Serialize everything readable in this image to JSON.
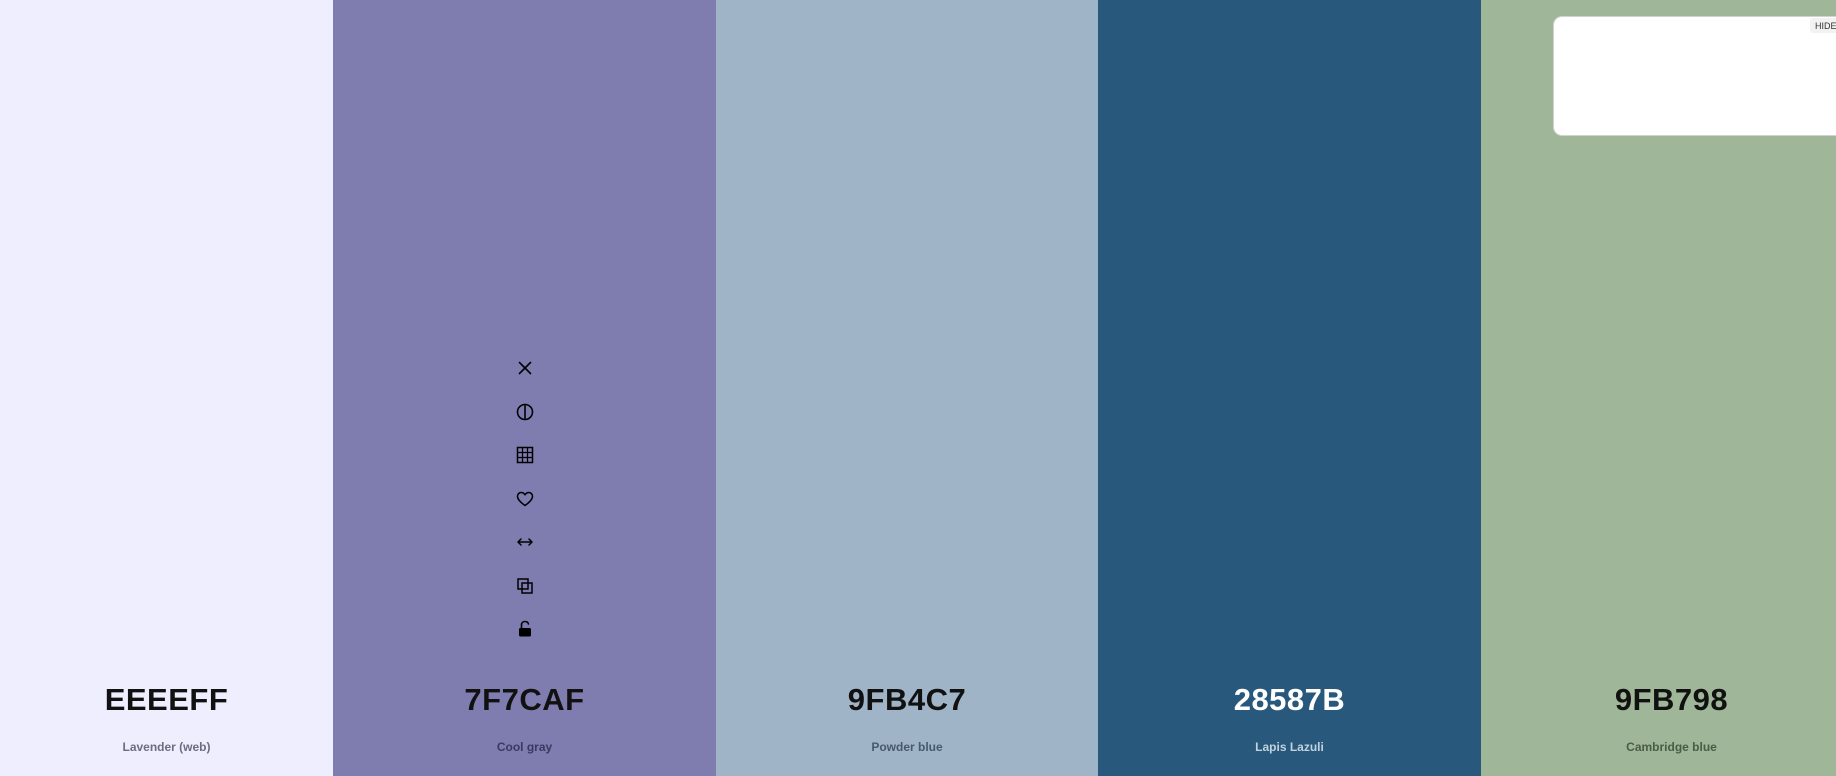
{
  "palette": {
    "colors": [
      {
        "hex": "EEEEFF",
        "name": "Lavender (web)",
        "bg": "#EEEEFF",
        "hex_color": "#111111",
        "name_color": "#6d6d82"
      },
      {
        "hex": "7F7CAF",
        "name": "Cool gray",
        "bg": "#7F7CAF",
        "hex_color": "#111111",
        "name_color": "#3a3960"
      },
      {
        "hex": "9FB4C7",
        "name": "Powder blue",
        "bg": "#9FB4C7",
        "hex_color": "#111111",
        "name_color": "#485a6a"
      },
      {
        "hex": "28587B",
        "name": "Lapis Lazuli",
        "bg": "#28587B",
        "hex_color": "#ffffff",
        "name_color": "#c2d2de"
      },
      {
        "hex": "9FB798",
        "name": "Cambridge blue",
        "bg": "#9FB798",
        "hex_color": "#111111",
        "name_color": "#4a5c45"
      }
    ],
    "toolbar_icons": [
      "close-icon",
      "contrast-icon",
      "shades-icon",
      "heart-icon",
      "drag-arrows-icon",
      "copy-icon",
      "unlock-icon"
    ]
  },
  "popup": {
    "hide_label": "HIDE"
  }
}
